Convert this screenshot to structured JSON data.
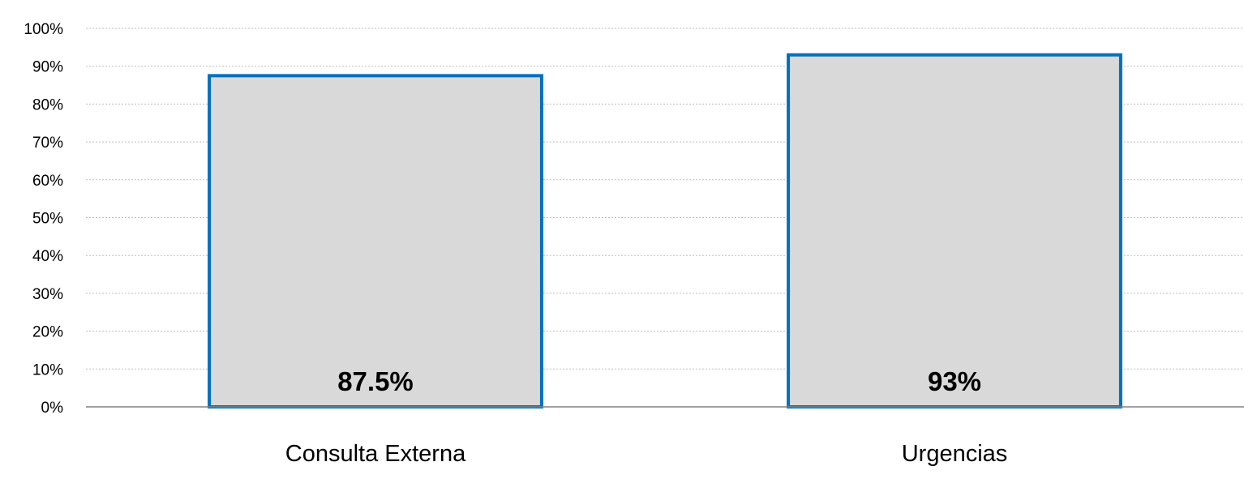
{
  "chart_data": {
    "type": "bar",
    "categories": [
      "Consulta Externa",
      "Urgencias"
    ],
    "values": [
      87.5,
      93
    ],
    "data_labels": [
      "87.5%",
      "93%"
    ],
    "title": "",
    "xlabel": "",
    "ylabel": "",
    "ylim": [
      0,
      100
    ],
    "yticks": [
      0,
      10,
      20,
      30,
      40,
      50,
      60,
      70,
      80,
      90,
      100
    ],
    "ytick_labels": [
      "0%",
      "10%",
      "20%",
      "30%",
      "40%",
      "50%",
      "60%",
      "70%",
      "80%",
      "90%",
      "100%"
    ],
    "grid": true,
    "legend": false,
    "colors": {
      "bar_fill": "#d9d9d9",
      "bar_border": "#0070c0",
      "grid": "#bfbfbf",
      "axis": "#808080"
    }
  }
}
